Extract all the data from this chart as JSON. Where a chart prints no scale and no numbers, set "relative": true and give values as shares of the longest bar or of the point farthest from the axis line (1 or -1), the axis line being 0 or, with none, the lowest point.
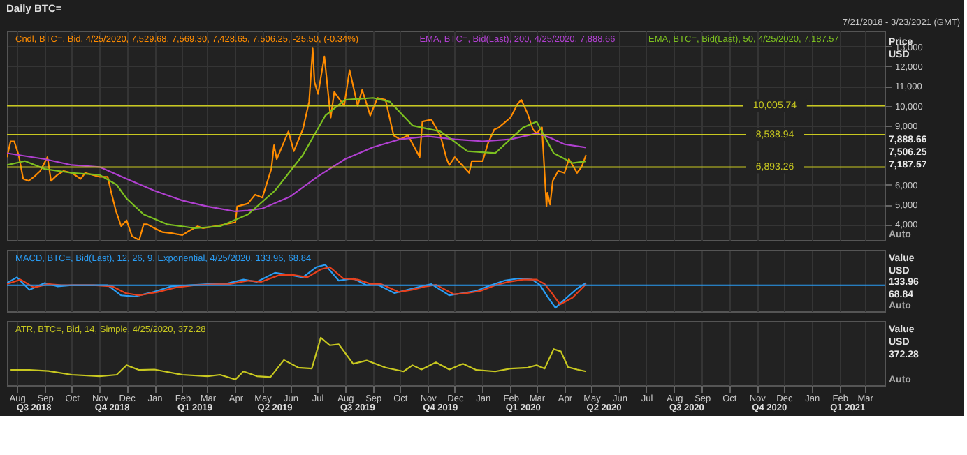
{
  "chart_data": [
    {
      "type": "line",
      "title": "Daily BTC=",
      "subtitle": "7/21/2018 - 3/23/2021 (GMT)",
      "ylabel": "Price USD",
      "xlim": [
        "2018-07-21",
        "2021-03-23"
      ],
      "ylim": [
        3200,
        13800
      ],
      "yticks": [
        {
          "value": 4000,
          "label": "4,000"
        },
        {
          "value": 5000,
          "label": "5,000"
        },
        {
          "value": 6000,
          "label": "6,000"
        },
        {
          "value": 9000,
          "label": "9,000"
        },
        {
          "value": 10000,
          "label": "10,000"
        },
        {
          "value": 11000,
          "label": "11,000"
        },
        {
          "value": 12000,
          "label": "12,000"
        },
        {
          "value": 13000,
          "label": "13,000"
        }
      ],
      "grid": true,
      "tick_labels": "y",
      "series": [
        {
          "name": "Cndl, BTC=, Bid, 4/25/2020, 7,529.68, 7,569.30, 7,428.65, 7,506.25, -25.50, (-0.34%)",
          "color": "#ff8c00",
          "x": [
            "2018-07-21",
            "2018-07-25",
            "2018-07-29",
            "2018-08-03",
            "2018-08-08",
            "2018-08-14",
            "2018-08-20",
            "2018-08-27",
            "2018-09-04",
            "2018-09-08",
            "2018-09-15",
            "2018-09-22",
            "2018-10-01",
            "2018-10-11",
            "2018-10-16",
            "2018-11-01",
            "2018-11-10",
            "2018-11-14",
            "2018-11-19",
            "2018-11-25",
            "2018-12-01",
            "2018-12-07",
            "2018-12-15",
            "2018-12-20",
            "2018-12-24",
            "2019-01-01",
            "2019-01-10",
            "2019-01-20",
            "2019-02-01",
            "2019-02-08",
            "2019-02-18",
            "2019-02-24",
            "2019-03-15",
            "2019-04-01",
            "2019-04-03",
            "2019-04-15",
            "2019-04-23",
            "2019-05-01",
            "2019-05-11",
            "2019-05-14",
            "2019-05-17",
            "2019-05-30",
            "2019-06-05",
            "2019-06-15",
            "2019-06-22",
            "2019-06-26",
            "2019-06-28",
            "2019-07-02",
            "2019-07-09",
            "2019-07-16",
            "2019-07-20",
            "2019-07-31",
            "2019-08-06",
            "2019-08-15",
            "2019-08-20",
            "2019-08-29",
            "2019-09-06",
            "2019-09-15",
            "2019-09-24",
            "2019-10-01",
            "2019-10-10",
            "2019-10-23",
            "2019-10-26",
            "2019-11-05",
            "2019-11-15",
            "2019-11-22",
            "2019-11-25",
            "2019-12-01",
            "2019-12-17",
            "2019-12-20",
            "2020-01-01",
            "2020-01-07",
            "2020-01-14",
            "2020-01-19",
            "2020-02-01",
            "2020-02-09",
            "2020-02-13",
            "2020-02-20",
            "2020-02-26",
            "2020-03-01",
            "2020-03-07",
            "2020-03-08",
            "2020-03-12",
            "2020-03-13",
            "2020-03-16",
            "2020-03-19",
            "2020-03-25",
            "2020-04-01",
            "2020-04-06",
            "2020-04-15",
            "2020-04-20",
            "2020-04-25"
          ],
          "values": [
            7400,
            8200,
            8200,
            7500,
            6300,
            6200,
            6400,
            6700,
            7400,
            6200,
            6500,
            6700,
            6600,
            6300,
            6600,
            6400,
            6400,
            5600,
            4700,
            3900,
            4200,
            3400,
            3200,
            4000,
            4000,
            3800,
            3600,
            3550,
            3450,
            3650,
            3900,
            3800,
            3950,
            4100,
            4900,
            5050,
            5500,
            5350,
            6800,
            8000,
            7300,
            8700,
            7700,
            8800,
            10200,
            12900,
            11200,
            10600,
            12500,
            9400,
            10700,
            10000,
            11800,
            10000,
            10800,
            9500,
            10400,
            10300,
            8500,
            8300,
            8500,
            7400,
            9200,
            9300,
            8500,
            7300,
            7000,
            7400,
            6600,
            7200,
            7200,
            8100,
            8800,
            8900,
            9400,
            10100,
            10300,
            9600,
            8800,
            8600,
            8900,
            8100,
            4900,
            5600,
            5000,
            6200,
            6700,
            6600,
            7300,
            6600,
            6900,
            7506.25
          ]
        },
        {
          "name": "EMA, BTC=, Bid(Last), 200, 4/25/2020, 7,888.66",
          "color": "#b040d0",
          "x": [
            "2018-07-21",
            "2018-09-01",
            "2018-10-01",
            "2018-11-01",
            "2018-12-01",
            "2019-01-01",
            "2019-02-01",
            "2019-03-01",
            "2019-04-01",
            "2019-04-15",
            "2019-05-01",
            "2019-06-01",
            "2019-07-01",
            "2019-08-01",
            "2019-09-01",
            "2019-10-01",
            "2019-11-01",
            "2019-12-01",
            "2020-01-01",
            "2020-02-01",
            "2020-03-01",
            "2020-03-15",
            "2020-04-01",
            "2020-04-25"
          ],
          "values": [
            7600,
            7300,
            7000,
            6900,
            6300,
            5700,
            5200,
            4900,
            4650,
            4700,
            4800,
            5400,
            6400,
            7300,
            7900,
            8300,
            8450,
            8300,
            8200,
            8300,
            8600,
            8400,
            8050,
            7888.66
          ]
        },
        {
          "name": "EMA, BTC=, Bid(Last), 50, 4/25/2020, 7,187.57",
          "color": "#7cc020",
          "x": [
            "2018-07-21",
            "2018-08-10",
            "2018-09-01",
            "2018-10-01",
            "2018-11-01",
            "2018-11-20",
            "2018-12-01",
            "2018-12-20",
            "2019-01-15",
            "2019-02-15",
            "2019-03-15",
            "2019-04-15",
            "2019-05-15",
            "2019-06-15",
            "2019-07-10",
            "2019-08-01",
            "2019-09-01",
            "2019-09-20",
            "2019-10-15",
            "2019-11-15",
            "2019-12-15",
            "2020-01-15",
            "2020-02-15",
            "2020-03-01",
            "2020-03-20",
            "2020-04-10",
            "2020-04-25"
          ],
          "values": [
            7000,
            7200,
            6800,
            6600,
            6500,
            6000,
            5300,
            4500,
            4000,
            3800,
            3900,
            4500,
            5700,
            7500,
            9500,
            10300,
            10400,
            10200,
            9000,
            8700,
            7700,
            7600,
            8900,
            9200,
            7600,
            7100,
            7187.57
          ]
        }
      ],
      "ref_lines": [
        {
          "axis": "y",
          "value": 10005.74,
          "label": "10,005.74",
          "color": "#c8c820"
        },
        {
          "axis": "y",
          "value": 8538.94,
          "label": "8,538.94",
          "color": "#c8c820"
        },
        {
          "axis": "y",
          "value": 6893.26,
          "label": "6,893.26",
          "color": "#c8c820"
        }
      ],
      "annotations": [
        "7,888.66",
        "7,506.25",
        "7,187.57",
        "Auto"
      ]
    },
    {
      "type": "line",
      "relative": true,
      "ylabel": "Value USD",
      "xlim": [
        "2018-07-21",
        "2021-03-23"
      ],
      "grid": "x",
      "tick_labels": false,
      "series": [
        {
          "name": "MACD, BTC=, Bid(Last), 12, 26, 9, Exponential, 4/25/2020, 133.96, 68.84",
          "color": "#2a9df4",
          "x": [
            "2018-07-21",
            "2018-08-01",
            "2018-08-15",
            "2018-09-01",
            "2018-09-15",
            "2018-10-01",
            "2018-10-20",
            "2018-11-10",
            "2018-11-25",
            "2018-12-10",
            "2018-12-31",
            "2019-01-20",
            "2019-02-10",
            "2019-03-01",
            "2019-03-20",
            "2019-04-10",
            "2019-04-25",
            "2019-05-15",
            "2019-06-01",
            "2019-06-15",
            "2019-06-30",
            "2019-07-10",
            "2019-07-25",
            "2019-08-10",
            "2019-08-25",
            "2019-09-05",
            "2019-09-25",
            "2019-10-10",
            "2019-10-25",
            "2019-11-05",
            "2019-11-25",
            "2019-12-10",
            "2019-12-25",
            "2020-01-10",
            "2020-01-25",
            "2020-02-10",
            "2020-02-25",
            "2020-03-05",
            "2020-03-13",
            "2020-03-22",
            "2020-04-05",
            "2020-04-15",
            "2020-04-25"
          ],
          "values": [
            0.1,
            0.35,
            -0.2,
            0.1,
            -0.05,
            0.0,
            0.0,
            0.0,
            -0.45,
            -0.5,
            -0.3,
            -0.05,
            0.0,
            0.05,
            0.05,
            0.25,
            0.15,
            0.55,
            0.45,
            0.35,
            0.8,
            0.9,
            0.2,
            0.3,
            0.0,
            0.05,
            -0.35,
            -0.2,
            -0.05,
            0.05,
            -0.45,
            -0.35,
            -0.25,
            0.0,
            0.2,
            0.3,
            0.25,
            0.0,
            -0.5,
            -1.0,
            -0.5,
            -0.15,
            0.1
          ]
        },
        {
          "color": "#e8401c",
          "x": [
            "2018-07-21",
            "2018-08-05",
            "2018-08-20",
            "2018-09-05",
            "2018-09-20",
            "2018-10-05",
            "2018-10-25",
            "2018-11-15",
            "2018-11-30",
            "2018-12-15",
            "2019-01-05",
            "2019-01-25",
            "2019-02-15",
            "2019-03-05",
            "2019-03-25",
            "2019-04-15",
            "2019-04-30",
            "2019-05-20",
            "2019-06-05",
            "2019-06-20",
            "2019-07-05",
            "2019-07-15",
            "2019-07-30",
            "2019-08-15",
            "2019-08-30",
            "2019-09-10",
            "2019-09-30",
            "2019-10-15",
            "2019-10-30",
            "2019-11-10",
            "2019-11-30",
            "2019-12-15",
            "2019-12-30",
            "2020-01-15",
            "2020-01-30",
            "2020-02-15",
            "2020-03-01",
            "2020-03-10",
            "2020-03-18",
            "2020-03-27",
            "2020-04-10",
            "2020-04-25"
          ],
          "values": [
            0.05,
            0.25,
            -0.1,
            0.05,
            0.0,
            0.0,
            0.0,
            -0.05,
            -0.35,
            -0.45,
            -0.3,
            -0.1,
            0.0,
            0.03,
            0.05,
            0.2,
            0.15,
            0.45,
            0.45,
            0.35,
            0.7,
            0.8,
            0.3,
            0.25,
            0.05,
            0.05,
            -0.3,
            -0.2,
            -0.05,
            0.02,
            -0.4,
            -0.35,
            -0.25,
            0.0,
            0.15,
            0.25,
            0.25,
            0.05,
            -0.35,
            -0.85,
            -0.55,
            0.05
          ]
        }
      ],
      "ref_lines": [
        {
          "axis": "y",
          "value": 0,
          "color": "#2a9df4"
        }
      ],
      "annotations": [
        "133.96",
        "68.84",
        "Auto"
      ]
    },
    {
      "type": "line",
      "relative": true,
      "ylabel": "Value USD",
      "xlim": [
        "2018-07-21",
        "2021-03-23"
      ],
      "grid": "x",
      "tick_labels": "x",
      "xticks": [
        {
          "value": "2018-08-01",
          "label": "Aug"
        },
        {
          "value": "2018-09-01",
          "label": "Sep"
        },
        {
          "value": "2018-10-01",
          "label": "Oct"
        },
        {
          "value": "2018-11-01",
          "label": "Nov"
        },
        {
          "value": "2018-12-01",
          "label": "Dec"
        },
        {
          "value": "2019-01-01",
          "label": "Jan"
        },
        {
          "value": "2019-02-01",
          "label": "Feb"
        },
        {
          "value": "2019-03-01",
          "label": "Mar"
        },
        {
          "value": "2019-04-01",
          "label": "Apr"
        },
        {
          "value": "2019-05-01",
          "label": "May"
        },
        {
          "value": "2019-06-01",
          "label": "Jun"
        },
        {
          "value": "2019-07-01",
          "label": "Jul"
        },
        {
          "value": "2019-08-01",
          "label": "Aug"
        },
        {
          "value": "2019-09-01",
          "label": "Sep"
        },
        {
          "value": "2019-10-01",
          "label": "Oct"
        },
        {
          "value": "2019-11-01",
          "label": "Nov"
        },
        {
          "value": "2019-12-01",
          "label": "Dec"
        },
        {
          "value": "2020-01-01",
          "label": "Jan"
        },
        {
          "value": "2020-02-01",
          "label": "Feb"
        },
        {
          "value": "2020-03-01",
          "label": "Mar"
        },
        {
          "value": "2020-04-01",
          "label": "Apr"
        },
        {
          "value": "2020-05-01",
          "label": "May"
        },
        {
          "value": "2020-06-01",
          "label": "Jun"
        },
        {
          "value": "2020-07-01",
          "label": "Jul"
        },
        {
          "value": "2020-08-01",
          "label": "Aug"
        },
        {
          "value": "2020-09-01",
          "label": "Sep"
        },
        {
          "value": "2020-10-01",
          "label": "Oct"
        },
        {
          "value": "2020-11-01",
          "label": "Nov"
        },
        {
          "value": "2020-12-01",
          "label": "Dec"
        },
        {
          "value": "2021-01-01",
          "label": "Jan"
        },
        {
          "value": "2021-02-01",
          "label": "Feb"
        },
        {
          "value": "2021-03-01",
          "label": "Mar"
        }
      ],
      "x2lim": [
        "2018-07-21",
        "2021-03-23"
      ],
      "x2ticks": [
        {
          "value": "2018-08-20",
          "label": "Q3 2018"
        },
        {
          "value": "2018-11-15",
          "label": "Q4 2018"
        },
        {
          "value": "2019-02-15",
          "label": "Q1 2019"
        },
        {
          "value": "2019-05-15",
          "label": "Q2 2019"
        },
        {
          "value": "2019-08-15",
          "label": "Q3 2019"
        },
        {
          "value": "2019-11-15",
          "label": "Q4 2019"
        },
        {
          "value": "2020-02-15",
          "label": "Q1 2020"
        },
        {
          "value": "2020-05-15",
          "label": "Q2 2020"
        },
        {
          "value": "2020-08-15",
          "label": "Q3 2020"
        },
        {
          "value": "2020-11-15",
          "label": "Q4 2020"
        },
        {
          "value": "2021-02-10",
          "label": "Q1 2021"
        }
      ],
      "series": [
        {
          "name": "ATR, BTC=, Bid, 14, Simple, 4/25/2020, 372.28",
          "color": "#c8c820",
          "x": [
            "2018-07-25",
            "2018-08-15",
            "2018-09-05",
            "2018-10-01",
            "2018-11-01",
            "2018-11-20",
            "2018-12-01",
            "2018-12-15",
            "2019-01-01",
            "2019-02-01",
            "2019-03-01",
            "2019-03-15",
            "2019-04-01",
            "2019-04-10",
            "2019-04-25",
            "2019-05-10",
            "2019-05-25",
            "2019-06-10",
            "2019-06-25",
            "2019-07-05",
            "2019-07-15",
            "2019-07-25",
            "2019-08-10",
            "2019-08-25",
            "2019-09-15",
            "2019-10-05",
            "2019-10-15",
            "2019-10-25",
            "2019-11-10",
            "2019-11-25",
            "2019-12-10",
            "2019-12-25",
            "2020-01-15",
            "2020-02-01",
            "2020-02-20",
            "2020-03-01",
            "2020-03-10",
            "2020-03-20",
            "2020-03-28",
            "2020-04-05",
            "2020-04-15",
            "2020-04-25"
          ],
          "values": [
            0.32,
            0.32,
            0.3,
            0.22,
            0.19,
            0.22,
            0.42,
            0.32,
            0.33,
            0.22,
            0.19,
            0.22,
            0.12,
            0.29,
            0.19,
            0.17,
            0.53,
            0.37,
            0.35,
            1.0,
            0.84,
            0.86,
            0.45,
            0.52,
            0.37,
            0.29,
            0.42,
            0.33,
            0.48,
            0.33,
            0.45,
            0.32,
            0.29,
            0.35,
            0.37,
            0.42,
            0.35,
            0.76,
            0.71,
            0.38,
            0.33,
            0.29
          ]
        }
      ],
      "annotations": [
        "372.28",
        "Auto"
      ]
    }
  ]
}
